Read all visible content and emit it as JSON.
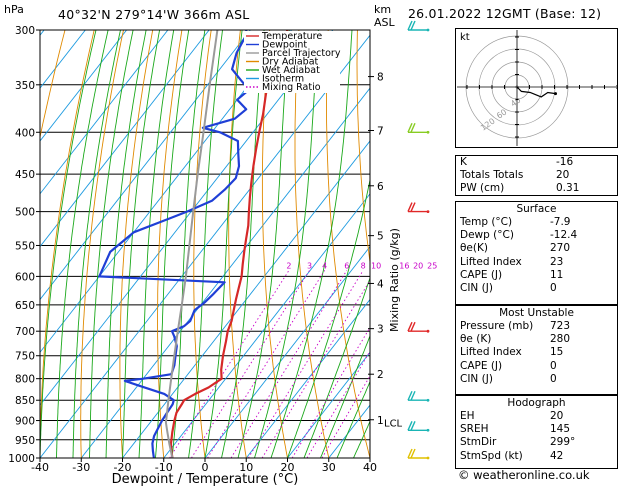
{
  "header": {
    "location": "40°32'N  279°14'W  366m  ASL",
    "datetime": "26.01.2022  12GMT  (Base: 12)",
    "pressure_unit": "hPa",
    "height_unit_km": "km",
    "height_unit_asl": "ASL"
  },
  "chart_data": {
    "type": "line",
    "subtype": "skew-T log-P",
    "xlabel": "Dewpoint / Temperature (°C)",
    "ylabel": "",
    "right_axis_label": "Mixing Ratio (g/kg)",
    "xlim": [
      -40,
      40
    ],
    "ylim": [
      1000,
      300
    ],
    "x_ticks": [
      -40,
      -30,
      -20,
      -10,
      0,
      10,
      20,
      30,
      40
    ],
    "pressure_ticks": [
      300,
      350,
      400,
      450,
      500,
      550,
      600,
      650,
      700,
      750,
      800,
      850,
      900,
      950,
      1000
    ],
    "height_ticks": [
      {
        "label": "8",
        "p": 342
      },
      {
        "label": "7",
        "p": 398
      },
      {
        "label": "6",
        "p": 465
      },
      {
        "label": "5",
        "p": 535
      },
      {
        "label": "4",
        "p": 612
      },
      {
        "label": "3",
        "p": 695
      },
      {
        "label": "2",
        "p": 790
      },
      {
        "label": "1",
        "p": 898
      }
    ],
    "lcl_label": "LCL",
    "lcl_pressure": 905,
    "mixing_ratio_labels": [
      "2",
      "3",
      "4",
      "6",
      "8",
      "10",
      "16",
      "20",
      "25"
    ],
    "mixing_ratio_label_pressure": 590,
    "legend": [
      {
        "name": "Temperature",
        "color": "#d62828"
      },
      {
        "name": "Dewpoint",
        "color": "#1f3fd6"
      },
      {
        "name": "Parcel Trajectory",
        "color": "#9a9a9a"
      },
      {
        "name": "Dry Adiabat",
        "color": "#e08a00"
      },
      {
        "name": "Wet Adiabat",
        "color": "#1aa81a"
      },
      {
        "name": "Isotherm",
        "color": "#1e9be0"
      },
      {
        "name": "Mixing Ratio",
        "color": "#c800c8"
      }
    ],
    "series": [
      {
        "name": "Temperature",
        "points": [
          [
            1000,
            -7.9
          ],
          [
            980,
            -9.5
          ],
          [
            960,
            -11.0
          ],
          [
            930,
            -12.8
          ],
          [
            900,
            -14.5
          ],
          [
            880,
            -15.5
          ],
          [
            860,
            -15.8
          ],
          [
            850,
            -16.0
          ],
          [
            835,
            -14.5
          ],
          [
            820,
            -12.5
          ],
          [
            800,
            -11.0
          ],
          [
            780,
            -12.8
          ],
          [
            750,
            -15.0
          ],
          [
            720,
            -17.0
          ],
          [
            700,
            -18.5
          ],
          [
            680,
            -19.5
          ],
          [
            660,
            -21.0
          ],
          [
            640,
            -22.5
          ],
          [
            620,
            -24.0
          ],
          [
            600,
            -25.5
          ],
          [
            580,
            -27.5
          ],
          [
            560,
            -29.5
          ],
          [
            540,
            -31.5
          ],
          [
            520,
            -33.5
          ],
          [
            500,
            -36.0
          ],
          [
            480,
            -38.5
          ],
          [
            460,
            -41.0
          ],
          [
            440,
            -43.5
          ],
          [
            420,
            -46.0
          ],
          [
            400,
            -48.5
          ],
          [
            380,
            -51.0
          ],
          [
            360,
            -54.0
          ],
          [
            340,
            -57.0
          ],
          [
            320,
            -59.5
          ],
          [
            310,
            -60.0
          ],
          [
            300,
            -61.0
          ]
        ]
      },
      {
        "name": "Dewpoint",
        "points": [
          [
            1000,
            -12.4
          ],
          [
            980,
            -14.0
          ],
          [
            960,
            -15.5
          ],
          [
            940,
            -16.5
          ],
          [
            920,
            -17.0
          ],
          [
            900,
            -17.5
          ],
          [
            880,
            -17.8
          ],
          [
            860,
            -18.0
          ],
          [
            850,
            -18.5
          ],
          [
            835,
            -22.0
          ],
          [
            815,
            -30.0
          ],
          [
            805,
            -34.0
          ],
          [
            800,
            -30.0
          ],
          [
            790,
            -24.0
          ],
          [
            770,
            -25.0
          ],
          [
            750,
            -26.5
          ],
          [
            730,
            -28.0
          ],
          [
            710,
            -30.5
          ],
          [
            700,
            -32.0
          ],
          [
            690,
            -30.0
          ],
          [
            680,
            -29.5
          ],
          [
            660,
            -30.5
          ],
          [
            645,
            -29.5
          ],
          [
            630,
            -29.0
          ],
          [
            610,
            -28.5
          ],
          [
            600,
            -60.0
          ],
          [
            560,
            -62.0
          ],
          [
            530,
            -60.0
          ],
          [
            510,
            -54.0
          ],
          [
            500,
            -51.0
          ],
          [
            485,
            -47.0
          ],
          [
            470,
            -46.0
          ],
          [
            455,
            -45.5
          ],
          [
            440,
            -47.0
          ],
          [
            425,
            -49.5
          ],
          [
            410,
            -52.0
          ],
          [
            400,
            -58.0
          ],
          [
            395,
            -63.0
          ],
          [
            385,
            -57.0
          ],
          [
            375,
            -56.0
          ],
          [
            365,
            -60.0
          ],
          [
            355,
            -59.0
          ],
          [
            345,
            -63.0
          ],
          [
            335,
            -67.0
          ],
          [
            320,
            -69.0
          ],
          [
            305,
            -70.0
          ],
          [
            300,
            -71.0
          ]
        ]
      },
      {
        "name": "Parcel Trajectory",
        "points": [
          [
            1000,
            -7.9
          ],
          [
            960,
            -11.4
          ],
          [
            930,
            -14.0
          ],
          [
            905,
            -16.2
          ],
          [
            880,
            -17.8
          ],
          [
            850,
            -19.8
          ],
          [
            800,
            -23.2
          ],
          [
            750,
            -26.8
          ],
          [
            700,
            -30.6
          ],
          [
            650,
            -34.6
          ],
          [
            600,
            -39.0
          ],
          [
            550,
            -44.0
          ],
          [
            500,
            -49.5
          ],
          [
            450,
            -55.5
          ],
          [
            400,
            -62.0
          ],
          [
            350,
            -69.5
          ],
          [
            300,
            -78.0
          ]
        ]
      }
    ],
    "skew_deg_per_decade": 81
  },
  "hodograph": {
    "label": "kt",
    "ring_labels": [
      "40",
      "60",
      "120"
    ],
    "points": [
      [
        0,
        0
      ],
      [
        4,
        -4
      ],
      [
        12,
        -5
      ],
      [
        22,
        -9
      ],
      [
        28,
        -5
      ],
      [
        35,
        -6
      ]
    ]
  },
  "indices": {
    "rows": [
      {
        "label": "K",
        "value": "-16"
      },
      {
        "label": "Totals Totals",
        "value": "20"
      },
      {
        "label": "PW (cm)",
        "value": "0.31"
      }
    ]
  },
  "surface": {
    "title": "Surface",
    "rows": [
      {
        "label": "Temp (°C)",
        "value": "-7.9"
      },
      {
        "label": "Dewp (°C)",
        "value": "-12.4"
      },
      {
        "label": "θe(K)",
        "value": "270"
      },
      {
        "label": "Lifted Index",
        "value": "23"
      },
      {
        "label": "CAPE (J)",
        "value": "11"
      },
      {
        "label": "CIN (J)",
        "value": "0"
      }
    ]
  },
  "most_unstable": {
    "title": "Most Unstable",
    "rows": [
      {
        "label": "Pressure (mb)",
        "value": "723"
      },
      {
        "label": "θe (K)",
        "value": "280"
      },
      {
        "label": "Lifted Index",
        "value": "15"
      },
      {
        "label": "CAPE (J)",
        "value": "0"
      },
      {
        "label": "CIN (J)",
        "value": "0"
      }
    ]
  },
  "hodograph_table": {
    "title": "Hodograph",
    "rows": [
      {
        "label": "EH",
        "value": "20"
      },
      {
        "label": "SREH",
        "value": "145"
      },
      {
        "label": "StmDir",
        "value": "299°"
      },
      {
        "label": "StmSpd (kt)",
        "value": "42"
      }
    ]
  },
  "copyright": "© weatheronline.co.uk",
  "wind_barbs": [
    {
      "p": 300,
      "color": "#1ab5b5"
    },
    {
      "p": 400,
      "color": "#88cc22"
    },
    {
      "p": 500,
      "color": "#e02828"
    },
    {
      "p": 700,
      "color": "#e02828"
    },
    {
      "p": 850,
      "color": "#1ab5b5"
    },
    {
      "p": 925,
      "color": "#1ab5b5"
    },
    {
      "p": 1000,
      "color": "#e0c000"
    }
  ],
  "colors": {
    "dry_adiabat": "#e08a00",
    "wet_adiabat": "#1aa81a",
    "isotherm": "#1e9be0",
    "mixing_ratio": "#c800c8",
    "temperature": "#d62828",
    "dewpoint": "#1f3fd6",
    "parcel": "#9a9a9a"
  }
}
